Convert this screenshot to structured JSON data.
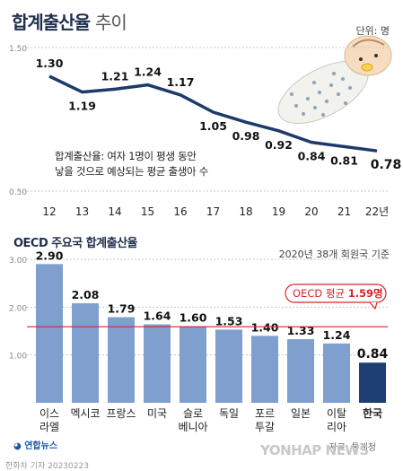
{
  "header": {
    "title": "합계출산율",
    "subtitle": "추이",
    "unit": "단위: 명"
  },
  "chart_data": [
    {
      "type": "line",
      "x": [
        "12",
        "13",
        "14",
        "15",
        "16",
        "17",
        "18",
        "19",
        "20",
        "21",
        "22년"
      ],
      "values": [
        1.3,
        1.19,
        1.21,
        1.24,
        1.17,
        1.05,
        0.98,
        0.92,
        0.84,
        0.81,
        0.78
      ],
      "labels": [
        "1.30",
        "1.19",
        "1.21",
        "1.24",
        "1.17",
        "1.05",
        "0.98",
        "0.92",
        "0.84",
        "0.81",
        "0.78"
      ],
      "ylim": [
        0.5,
        1.5
      ],
      "yticks": [
        "1.50",
        "0.50"
      ],
      "annotation": [
        "합계출산율: 여자 1명이 평생 동안",
        "낳을 것으로 예상되는 평균 출생아 수"
      ],
      "grid": true,
      "colors": {
        "line": "#1e3a6a"
      }
    },
    {
      "type": "bar",
      "title": "OECD 주요국 합계출산율",
      "note": "2020년 38개 회원국 기준",
      "categories": [
        [
          "이스",
          "라엘"
        ],
        [
          "멕시코"
        ],
        [
          "프랑스"
        ],
        [
          "미국"
        ],
        [
          "슬로",
          "베니아"
        ],
        [
          "독일"
        ],
        [
          "포르",
          "투갈"
        ],
        [
          "일본"
        ],
        [
          "이탈",
          "리아"
        ],
        [
          "한국"
        ]
      ],
      "values": [
        2.9,
        2.08,
        1.79,
        1.64,
        1.6,
        1.53,
        1.4,
        1.33,
        1.24,
        0.84
      ],
      "labels": [
        "2.90",
        "2.08",
        "1.79",
        "1.64",
        "1.60",
        "1.53",
        "1.40",
        "1.33",
        "1.24",
        "0.84"
      ],
      "ylim": [
        0,
        3
      ],
      "yticks": [
        "3.00",
        "2.00",
        "1.00"
      ],
      "reference": {
        "label": "OECD 평균",
        "value_label": "1.59명",
        "value": 1.59
      },
      "highlight_index": 9,
      "colors": {
        "bar": "#7f9fcf",
        "highlight": "#1e3f73",
        "reference": "#d9242b"
      }
    }
  ],
  "footer": {
    "logo": "연합뉴스",
    "source": "자료: 통계청",
    "watermark": "YONHAP NEWS",
    "copyright": "한화차 기자 20230223"
  }
}
